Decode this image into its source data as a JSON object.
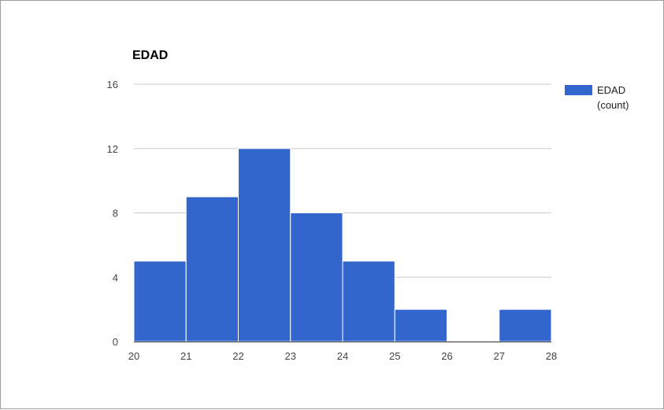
{
  "chart_data": {
    "type": "bar",
    "title": "EDAD",
    "bins": [
      {
        "start": 20,
        "end": 21,
        "count": 5
      },
      {
        "start": 21,
        "end": 22,
        "count": 9
      },
      {
        "start": 22,
        "end": 23,
        "count": 12
      },
      {
        "start": 23,
        "end": 24,
        "count": 8
      },
      {
        "start": 24,
        "end": 25,
        "count": 5
      },
      {
        "start": 25,
        "end": 26,
        "count": 2
      },
      {
        "start": 26,
        "end": 27,
        "count": 0
      },
      {
        "start": 27,
        "end": 28,
        "count": 2
      }
    ],
    "x_ticks": [
      "20",
      "21",
      "22",
      "23",
      "24",
      "25",
      "26",
      "27",
      "28"
    ],
    "y_ticks": [
      "0",
      "4",
      "8",
      "12",
      "16"
    ],
    "xlim": [
      20,
      28
    ],
    "ylim": [
      0,
      16
    ],
    "grid": true,
    "legend_position": "right",
    "series": [
      {
        "name_line1": "EDAD",
        "name_line2": "(count)",
        "color": "#3366cc"
      }
    ],
    "colors": {
      "bar": "#3366cc",
      "grid": "#cccccc",
      "axis": "#333333"
    }
  }
}
